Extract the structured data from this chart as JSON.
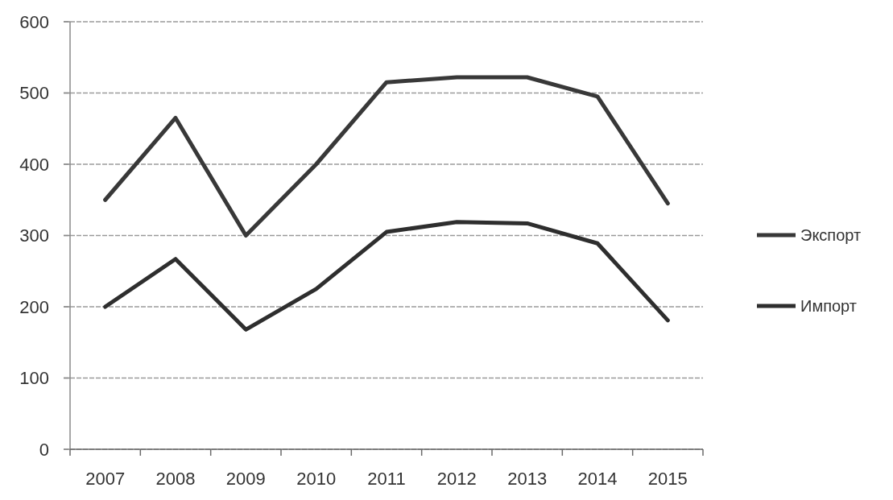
{
  "chart_data": {
    "type": "line",
    "categories": [
      "2007",
      "2008",
      "2009",
      "2010",
      "2011",
      "2012",
      "2013",
      "2014",
      "2015"
    ],
    "series": [
      {
        "name": "Экспорт",
        "color": "#383838",
        "values": [
          350,
          465,
          300,
          400,
          515,
          522,
          522,
          495,
          345
        ]
      },
      {
        "name": "Импорт",
        "color": "#2e2e2e",
        "values": [
          200,
          267,
          168,
          225,
          305,
          319,
          317,
          289,
          181
        ]
      }
    ],
    "ylim": [
      0,
      600
    ],
    "yticks": [
      0,
      100,
      200,
      300,
      400,
      500,
      600
    ],
    "grid": "y",
    "legend": "right",
    "line_style": "solid",
    "marker": "none"
  }
}
